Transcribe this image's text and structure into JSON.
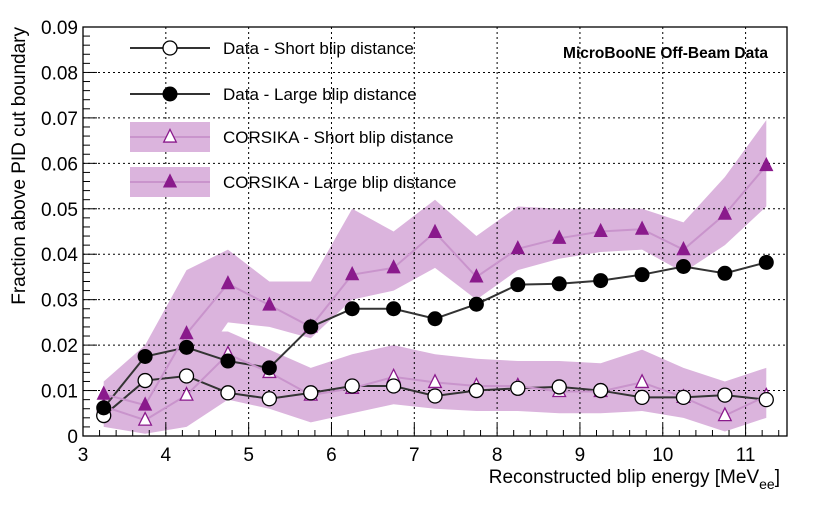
{
  "chart_data": {
    "type": "line",
    "title": "",
    "annotation": "MicroBooNE Off-Beam Data",
    "xlabel": "Reconstructed blip energy [MeV",
    "xlabel_subscript": "ee",
    "xlabel_close": "]",
    "ylabel": "Fraction above PID cut boundary",
    "xlim": [
      3,
      11.5
    ],
    "ylim": [
      0,
      0.09
    ],
    "grid": true,
    "legend_position": "top-left",
    "x_ticks": [
      3,
      4,
      5,
      6,
      7,
      8,
      9,
      10,
      11
    ],
    "x_tick_labels": [
      "3",
      "4",
      "5",
      "6",
      "7",
      "8",
      "9",
      "10",
      "11"
    ],
    "y_ticks": [
      0,
      0.01,
      0.02,
      0.03,
      0.04,
      0.05,
      0.06,
      0.07,
      0.08,
      0.09
    ],
    "y_tick_labels": [
      "0",
      "0.01",
      "0.02",
      "0.03",
      "0.04",
      "0.05",
      "0.06",
      "0.07",
      "0.08",
      "0.09"
    ],
    "x": [
      3.25,
      3.75,
      4.25,
      4.75,
      5.25,
      5.75,
      6.25,
      6.75,
      7.25,
      7.75,
      8.25,
      8.75,
      9.25,
      9.75,
      10.25,
      10.75,
      11.25
    ],
    "series": [
      {
        "name": "Data - Short blip distance",
        "color": "#333333",
        "marker": "open-circle",
        "values": [
          0.0045,
          0.0122,
          0.0132,
          0.0095,
          0.0082,
          0.0095,
          0.011,
          0.011,
          0.0088,
          0.01,
          0.0105,
          0.0108,
          0.01,
          0.0085,
          0.0085,
          0.009,
          0.008
        ]
      },
      {
        "name": "Data - Large blip distance",
        "color": "#333333",
        "marker": "filled-circle",
        "values": [
          0.0062,
          0.0175,
          0.0195,
          0.0165,
          0.015,
          0.024,
          0.028,
          0.028,
          0.0258,
          0.029,
          0.0333,
          0.0335,
          0.0342,
          0.0355,
          0.0373,
          0.0358,
          0.0382
        ]
      },
      {
        "name": "CORSIKA - Short blip distance",
        "color": "#c994cc",
        "marker_color": "#8a1a8c",
        "band_color": "#dbb4dd",
        "marker": "open-triangle",
        "values": [
          0.0065,
          0.0035,
          0.009,
          0.018,
          0.014,
          0.009,
          0.0105,
          0.013,
          0.0118,
          0.011,
          0.011,
          0.0098,
          0.0098,
          0.0118,
          0.0085,
          0.0045,
          0.0088
        ],
        "band_lower": [
          0.002,
          0.0005,
          0.002,
          0.008,
          0.006,
          0.003,
          0.005,
          0.007,
          0.006,
          0.0055,
          0.0055,
          0.005,
          0.005,
          0.0055,
          0.004,
          0.001,
          0.004
        ],
        "band_upper": [
          0.011,
          0.012,
          0.023,
          0.023,
          0.019,
          0.015,
          0.018,
          0.02,
          0.018,
          0.017,
          0.0165,
          0.0165,
          0.016,
          0.019,
          0.015,
          0.012,
          0.015
        ]
      },
      {
        "name": "CORSIKA - Large blip distance",
        "color": "#c994cc",
        "marker_color": "#8a1a8c",
        "band_color": "#dbb4dd",
        "marker": "filled-triangle",
        "values": [
          0.0092,
          0.0068,
          0.0225,
          0.0335,
          0.0288,
          0.024,
          0.0355,
          0.037,
          0.0448,
          0.035,
          0.0412,
          0.0435,
          0.045,
          0.0455,
          0.041,
          0.0488,
          0.0595
        ],
        "band_lower": [
          0.005,
          0.003,
          0.012,
          0.025,
          0.024,
          0.0215,
          0.03,
          0.032,
          0.037,
          0.03,
          0.0365,
          0.039,
          0.0405,
          0.041,
          0.036,
          0.042,
          0.0505
        ],
        "band_upper": [
          0.012,
          0.02,
          0.0365,
          0.041,
          0.034,
          0.034,
          0.05,
          0.045,
          0.052,
          0.044,
          0.0505,
          0.05,
          0.05,
          0.05,
          0.047,
          0.057,
          0.0695
        ]
      }
    ]
  }
}
